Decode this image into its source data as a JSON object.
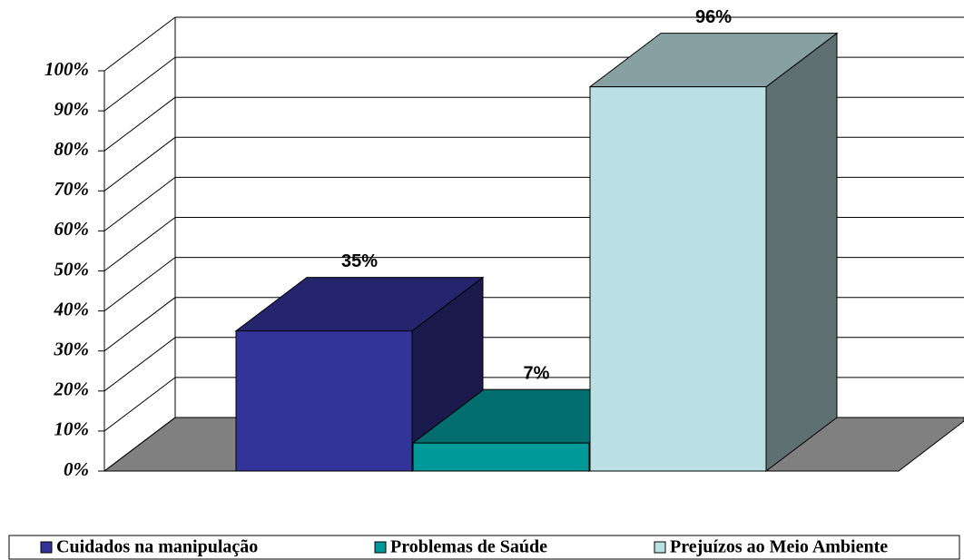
{
  "chart_data": {
    "type": "bar",
    "series": [
      {
        "name": "Cuidados na manipulação",
        "color": "#333399",
        "values": [
          35
        ],
        "value_labels": [
          "35%"
        ]
      },
      {
        "name": "Problemas de Saúde",
        "color": "#009999",
        "values": [
          7
        ],
        "value_labels": [
          "7%"
        ]
      },
      {
        "name": "Prejuízos ao Meio Ambiente",
        "color": "#bbe0e3",
        "values": [
          96
        ],
        "value_labels": [
          "96%"
        ]
      }
    ],
    "ylim": [
      0,
      100
    ],
    "yticks": [
      {
        "value": 0,
        "label": "0%"
      },
      {
        "value": 10,
        "label": "10%"
      },
      {
        "value": 20,
        "label": "20%"
      },
      {
        "value": 30,
        "label": "30%"
      },
      {
        "value": 40,
        "label": "40%"
      },
      {
        "value": 50,
        "label": "50%"
      },
      {
        "value": 60,
        "label": "60%"
      },
      {
        "value": 70,
        "label": "70%"
      },
      {
        "value": 80,
        "label": "80%"
      },
      {
        "value": 90,
        "label": "90%"
      },
      {
        "value": 100,
        "label": "100%"
      }
    ],
    "grid": true
  }
}
